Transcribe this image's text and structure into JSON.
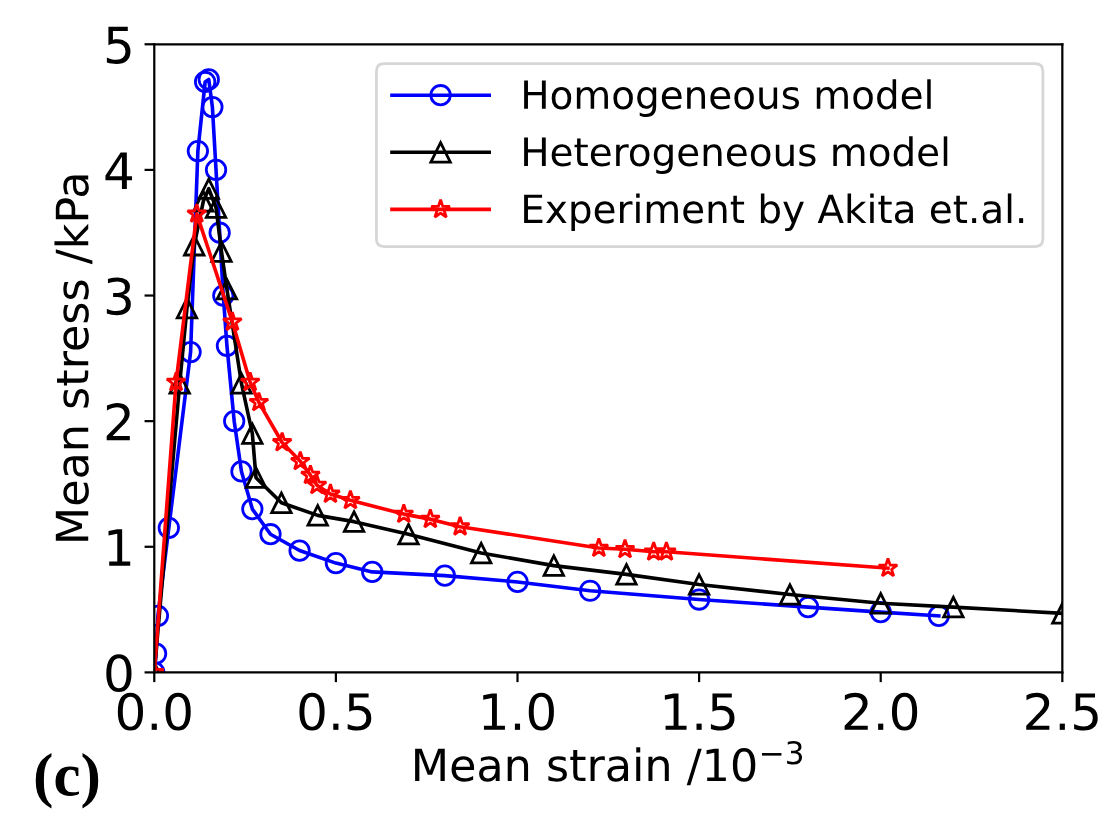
{
  "chart_data": {
    "type": "line",
    "xlabel": "Mean strain /10$^{−3}$",
    "ylabel": "Mean stress /kPa",
    "annotations": [
      "(c)"
    ],
    "xlim": [
      0,
      2.5
    ],
    "ylim": [
      0,
      5
    ],
    "xticks": [
      {
        "value": 0,
        "label": "0.0"
      },
      0.5,
      {
        "value": 1,
        "label": "1.0"
      },
      1.5,
      {
        "value": 2,
        "label": "2.0"
      },
      2.5
    ],
    "yticks": [
      0,
      1,
      2,
      3,
      4,
      5
    ],
    "legend": "top right",
    "grid": false,
    "series": [
      {
        "name": "Homogeneous model",
        "color": "#0000ff",
        "marker": "circle",
        "x": [
          0,
          0.005,
          0.01,
          0.04,
          0.1,
          0.12,
          0.14,
          0.15,
          0.16,
          0.17,
          0.18,
          0.19,
          0.2,
          0.22,
          0.24,
          0.27,
          0.32,
          0.4,
          0.5,
          0.6,
          0.8,
          1.0,
          1.2,
          1.5,
          1.8,
          2.0,
          2.16
        ],
        "values": [
          0,
          0.15,
          0.45,
          1.15,
          2.55,
          4.15,
          4.7,
          4.72,
          4.5,
          4.0,
          3.5,
          3.0,
          2.6,
          2.0,
          1.6,
          1.3,
          1.1,
          0.97,
          0.87,
          0.8,
          0.77,
          0.72,
          0.65,
          0.58,
          0.52,
          0.48,
          0.45
        ]
      },
      {
        "name": "Heterogeneous model",
        "color": "#000000",
        "marker": "triangle",
        "x": [
          0,
          0.07,
          0.09,
          0.11,
          0.135,
          0.15,
          0.17,
          0.185,
          0.2,
          0.24,
          0.27,
          0.28,
          0.35,
          0.45,
          0.55,
          0.7,
          0.9,
          1.1,
          1.3,
          1.5,
          1.75,
          2.0,
          2.2,
          2.5
        ],
        "values": [
          0,
          2.3,
          2.9,
          3.4,
          3.75,
          3.85,
          3.7,
          3.35,
          3.05,
          2.3,
          1.9,
          1.55,
          1.35,
          1.25,
          1.2,
          1.1,
          0.95,
          0.85,
          0.78,
          0.7,
          0.62,
          0.55,
          0.52,
          0.47
        ]
      },
      {
        "name": "Experiment by Akita et.al.",
        "color": "#ff0000",
        "marker": "star",
        "x": [
          0,
          0.06,
          0.117,
          0.215,
          0.264,
          0.288,
          0.352,
          0.402,
          0.43,
          0.448,
          0.485,
          0.54,
          0.687,
          0.76,
          0.842,
          1.224,
          1.296,
          1.375,
          1.41,
          2.02
        ],
        "values": [
          0,
          2.31,
          3.65,
          2.79,
          2.31,
          2.15,
          1.83,
          1.68,
          1.57,
          1.49,
          1.42,
          1.37,
          1.26,
          1.22,
          1.16,
          0.99,
          0.98,
          0.96,
          0.96,
          0.83
        ]
      }
    ]
  }
}
